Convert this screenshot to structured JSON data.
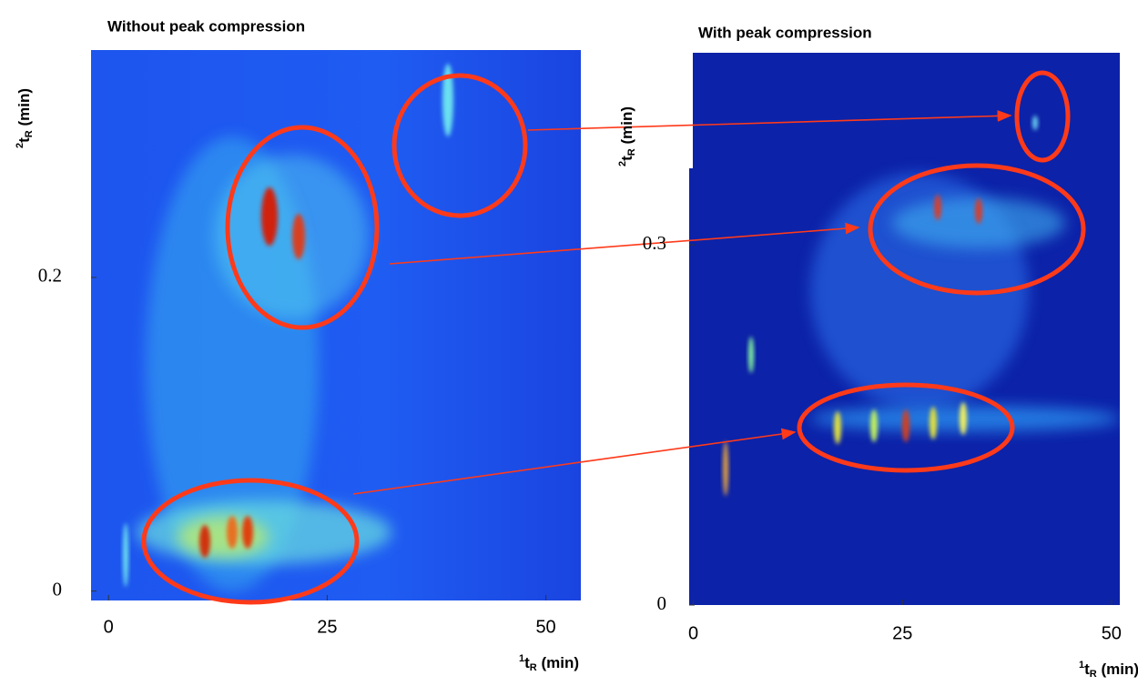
{
  "chart_data": [
    {
      "type": "heatmap",
      "title": "Without peak compression",
      "xlabel": [
        "1",
        "t",
        "R",
        " (min)"
      ],
      "ylabel": [
        "2",
        "t",
        "R",
        " (min)"
      ],
      "xlim": [
        -2,
        54
      ],
      "ylim": [
        -0.006,
        0.345
      ],
      "xticks": [
        0,
        25,
        50
      ],
      "yticks": [
        0,
        0.2
      ]
    },
    {
      "type": "heatmap",
      "title": "With peak compression",
      "xlabel": [
        "1",
        "t",
        "R",
        " (min)"
      ],
      "ylabel": [
        "2",
        "t",
        "R",
        " (min)"
      ],
      "xlim": [
        -0.5,
        51
      ],
      "ylim": [
        0,
        0.46
      ],
      "xticks": [
        0,
        25,
        50
      ],
      "yticks": [
        0,
        0.3
      ]
    }
  ]
}
